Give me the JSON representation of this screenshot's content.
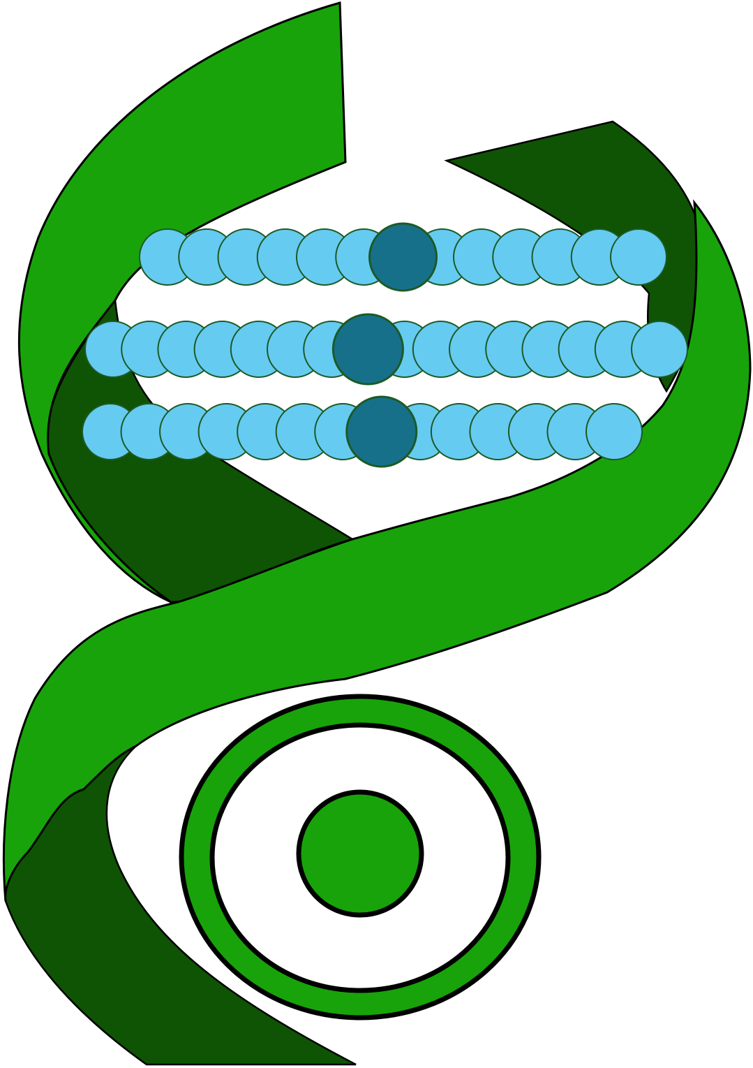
{
  "logo": {
    "name": "dna-helix-eye-logo",
    "colors": {
      "ribbon_front": "#18a30a",
      "ribbon_back": "#0f5404",
      "bead_light": "#66cbf1",
      "bead_dark": "#17708a",
      "bead_stroke": "#1c5a25",
      "outline": "#000000",
      "background": "#ffffff"
    },
    "bead_rows": [
      {
        "beads": 13,
        "highlight_index": 6
      },
      {
        "beads": 16,
        "highlight_index": 7
      },
      {
        "beads": 14,
        "highlight_index": 7
      }
    ]
  }
}
